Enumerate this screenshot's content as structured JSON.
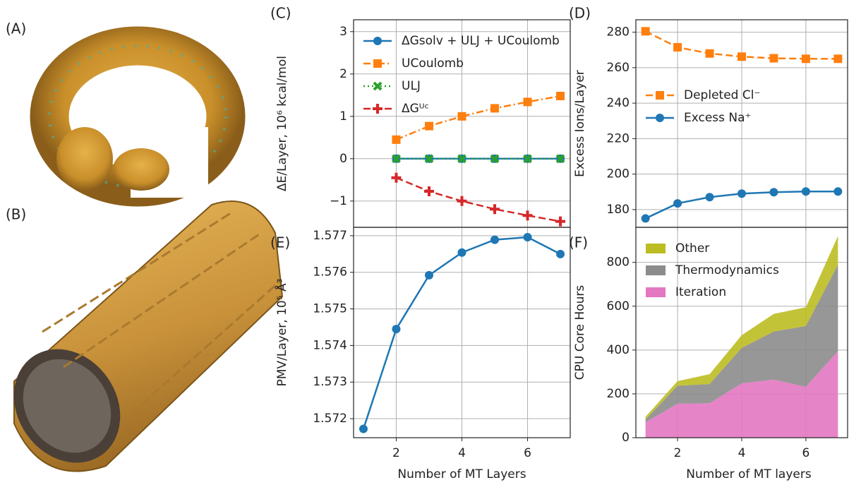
{
  "image_panels": [
    {
      "label": "(A)"
    },
    {
      "label": "(B)"
    }
  ],
  "chart_data": [
    {
      "type": "line",
      "panel": "(C)",
      "ylabel": "ΔE/Layer, 10⁶ kcal/mol",
      "show_xtick_labels": false,
      "x": [
        2,
        3,
        4,
        5,
        6,
        7
      ],
      "xlim": [
        0.7,
        7.3
      ],
      "xticks": [
        2,
        4,
        6
      ],
      "ylim": [
        -1.62,
        3.28
      ],
      "yticks": [
        {
          "value": -1,
          "label": "−1"
        },
        0,
        1,
        2,
        3
      ],
      "grid": true,
      "legend": "upper left",
      "series": [
        {
          "name": "ΔGsolv + ULJ + UCoulomb",
          "color": "#1f77b4",
          "marker": "circle",
          "linestyle": "solid",
          "values": [
            0,
            0,
            0,
            0,
            0,
            0
          ]
        },
        {
          "name": "UCoulomb",
          "color": "#ff7f0e",
          "marker": "square",
          "linestyle": "dashdot",
          "values": [
            0.45,
            0.77,
            1.0,
            1.19,
            1.34,
            1.48
          ]
        },
        {
          "name": "ULJ",
          "color": "#2ca02c",
          "marker": "x",
          "linestyle": "dotted",
          "values": [
            0,
            0,
            0,
            0,
            0,
            0
          ]
        },
        {
          "name": "ΔGᵁᶜ",
          "color": "#d62728",
          "marker": "plus",
          "linestyle": "dashed",
          "values": [
            -0.45,
            -0.77,
            -1.0,
            -1.19,
            -1.34,
            -1.48
          ]
        }
      ]
    },
    {
      "type": "line",
      "panel": "(D)",
      "ylabel": "Excess Ions/Layer",
      "show_xtick_labels": false,
      "x": [
        1,
        2,
        3,
        4,
        5,
        6,
        7
      ],
      "xlim": [
        0.7,
        7.3
      ],
      "xticks": [
        2,
        4,
        6
      ],
      "ylim": [
        170,
        287
      ],
      "yticks": [
        180,
        200,
        220,
        240,
        260,
        280
      ],
      "grid": true,
      "legend": "center left",
      "series": [
        {
          "name": "Depleted Cl⁻",
          "color": "#ff7f0e",
          "marker": "square",
          "linestyle": "dashed",
          "values": [
            280.5,
            271.5,
            268,
            266.2,
            265.3,
            265,
            265
          ]
        },
        {
          "name": "Excess Na⁺",
          "color": "#1f77b4",
          "marker": "circle",
          "linestyle": "solid",
          "values": [
            175,
            183.5,
            187,
            189,
            189.8,
            190.2,
            190.2
          ]
        }
      ]
    },
    {
      "type": "line",
      "panel": "(E)",
      "ylabel": "PMV/Layer, 10⁵ Å³",
      "xlabel": "Number of MT Layers",
      "show_xtick_labels": true,
      "x": [
        1,
        2,
        3,
        4,
        5,
        6,
        7
      ],
      "xlim": [
        0.7,
        7.3
      ],
      "xticks": [
        2,
        4,
        6
      ],
      "ylim": [
        1.57148,
        1.57723
      ],
      "yticks": [
        1.572,
        1.573,
        1.574,
        1.575,
        1.576,
        1.577
      ],
      "grid": true,
      "series": [
        {
          "color": "#1f77b4",
          "marker": "circle",
          "linestyle": "solid",
          "values": [
            1.57172,
            1.57445,
            1.57592,
            1.57654,
            1.57689,
            1.57696,
            1.5765
          ]
        }
      ]
    },
    {
      "type": "area",
      "panel": "(F)",
      "ylabel": "CPU Core Hours",
      "xlabel": "Number of MT layers",
      "show_xtick_labels": true,
      "x": [
        1,
        2,
        3,
        4,
        5,
        6,
        7
      ],
      "xlim": [
        0.7,
        7.3
      ],
      "xticks": [
        2,
        4,
        6
      ],
      "ylim": [
        0,
        960
      ],
      "yticks": [
        0,
        200,
        400,
        600,
        800
      ],
      "grid": true,
      "legend": "upper left",
      "series": [
        {
          "name": "Iteration",
          "color": "#e377c2",
          "values": [
            70,
            155,
            157,
            248,
            265,
            232,
            395
          ]
        },
        {
          "name": "Thermodynamics",
          "color": "#8c8c8c",
          "values": [
            13,
            82,
            88,
            162,
            220,
            278,
            395
          ]
        },
        {
          "name": "Other",
          "color": "#bcbd22",
          "values": [
            12,
            21,
            45,
            58,
            80,
            85,
            130
          ]
        }
      ]
    }
  ]
}
